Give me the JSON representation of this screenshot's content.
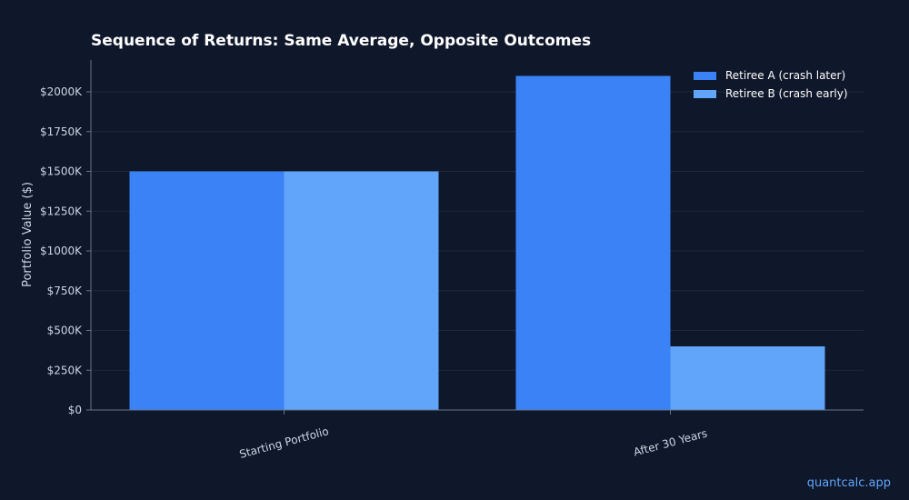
{
  "watermark": "quantcalc.app",
  "colors": {
    "background": "#0f172a",
    "series_a": "#3b82f6",
    "series_b": "#60a5fa",
    "text": "#ffffff",
    "tick_text": "#cbd5e1",
    "axis": "#64748b",
    "grid": "#1e293b"
  },
  "chart_data": {
    "type": "bar",
    "title": "Sequence of Returns: Same Average, Opposite Outcomes",
    "xlabel": "",
    "ylabel": "Portfolio Value ($)",
    "categories": [
      "Starting Portfolio",
      "After 30 Years"
    ],
    "series": [
      {
        "name": "Retiree A (crash later)",
        "values": [
          1500000,
          2100000
        ]
      },
      {
        "name": "Retiree B (crash early)",
        "values": [
          1500000,
          400000
        ]
      }
    ],
    "ylim": [
      0,
      2200000
    ],
    "yticks": [
      0,
      250000,
      500000,
      750000,
      1000000,
      1250000,
      1500000,
      1750000,
      2000000
    ],
    "ytick_labels": [
      "$0",
      "$250K",
      "$500K",
      "$750K",
      "$1000K",
      "$1250K",
      "$1500K",
      "$1750K",
      "$2000K"
    ],
    "grid": true,
    "legend_position": "top-right"
  }
}
